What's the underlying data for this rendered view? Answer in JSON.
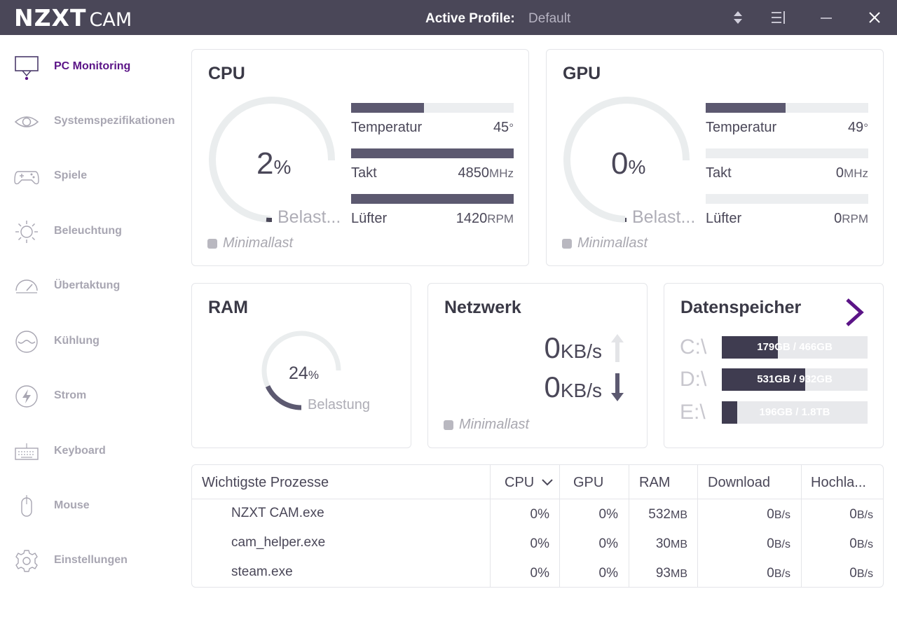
{
  "titlebar": {
    "logo_bold": "NZXT",
    "logo_light": "CAM",
    "profile_label": "Active Profile:",
    "profile_value": "Default",
    "icons": [
      "sort-arrows-icon",
      "menu-list-icon",
      "minimize-icon",
      "close-icon"
    ]
  },
  "sidebar": {
    "items": [
      {
        "label": "PC Monitoring",
        "icon": "monitor-icon",
        "active": true
      },
      {
        "label": "Systemspezifikationen",
        "icon": "eye-icon"
      },
      {
        "label": "Spiele",
        "icon": "gamepad-icon"
      },
      {
        "label": "Beleuchtung",
        "icon": "sun-icon"
      },
      {
        "label": "Übertaktung",
        "icon": "speedometer-icon"
      },
      {
        "label": "Kühlung",
        "icon": "cooling-icon"
      },
      {
        "label": "Strom",
        "icon": "power-bolt-icon"
      },
      {
        "label": "Keyboard",
        "icon": "keyboard-icon"
      },
      {
        "label": "Mouse",
        "icon": "mouse-icon"
      },
      {
        "label": "Einstellungen",
        "icon": "gear-icon"
      }
    ]
  },
  "cpu": {
    "title": "CPU",
    "load_value": "2",
    "load_fraction": 0.02,
    "load_unit": "%",
    "load_label": "Belast...",
    "status": "Minimallast",
    "metrics": [
      {
        "label": "Temperatur",
        "value": "45",
        "unit": "°",
        "fill": 0.45
      },
      {
        "label": "Takt",
        "value": "4850",
        "unit": "MHz",
        "fill": 1.0
      },
      {
        "label": "Lüfter",
        "value": "1420",
        "unit": "RPM",
        "fill": 1.0
      }
    ]
  },
  "gpu": {
    "title": "GPU",
    "load_value": "0",
    "load_fraction": 0.0,
    "load_unit": "%",
    "load_label": "Belast...",
    "status": "Minimallast",
    "metrics": [
      {
        "label": "Temperatur",
        "value": "49",
        "unit": "°",
        "fill": 0.49
      },
      {
        "label": "Takt",
        "value": "0",
        "unit": "MHz",
        "fill": 0.0
      },
      {
        "label": "Lüfter",
        "value": "0",
        "unit": "RPM",
        "fill": 0.0
      }
    ]
  },
  "ram": {
    "title": "RAM",
    "load_value": "24",
    "load_fraction": 0.24,
    "load_unit": "%",
    "load_label": "Belastung"
  },
  "network": {
    "title": "Netzwerk",
    "upload_value": "0",
    "upload_unit": "KB/s",
    "download_value": "0",
    "download_unit": "KB/s",
    "status": "Minimallast"
  },
  "storage": {
    "title": "Datenspeicher",
    "drives": [
      {
        "letter": "C:\\",
        "used": "179GB",
        "total": "466GB",
        "fill": 0.384
      },
      {
        "letter": "D:\\",
        "used": "531GB",
        "total": "932GB",
        "fill": 0.57
      },
      {
        "letter": "E:\\",
        "used": "196GB",
        "total": "1.8TB",
        "fill": 0.106
      }
    ]
  },
  "processes": {
    "headers": [
      "Wichtigste Prozesse",
      "CPU",
      "GPU",
      "RAM",
      "Download",
      "Hochla..."
    ],
    "rows": [
      {
        "name": "NZXT CAM.exe",
        "cpu": "0%",
        "gpu": "0%",
        "ram": "532",
        "ram_unit": "MB",
        "down": "0",
        "down_unit": "B/s",
        "up": "0",
        "up_unit": "B/s"
      },
      {
        "name": "cam_helper.exe",
        "cpu": "0%",
        "gpu": "0%",
        "ram": "30",
        "ram_unit": "MB",
        "down": "0",
        "down_unit": "B/s",
        "up": "0",
        "up_unit": "B/s"
      },
      {
        "name": "steam.exe",
        "cpu": "0%",
        "gpu": "0%",
        "ram": "93",
        "ram_unit": "MB",
        "down": "0",
        "down_unit": "B/s",
        "up": "0",
        "up_unit": "B/s"
      }
    ]
  }
}
